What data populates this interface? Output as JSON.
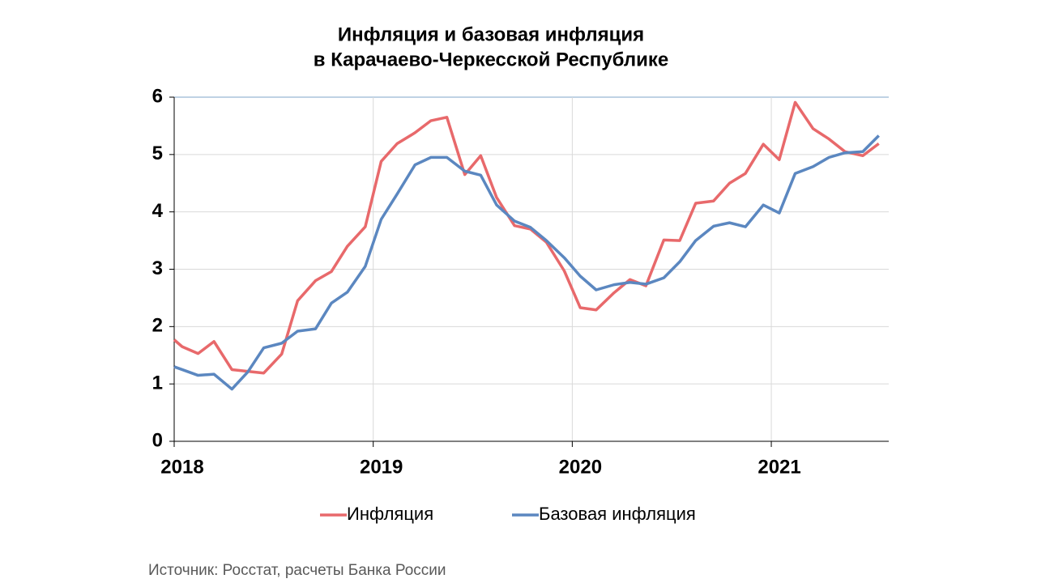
{
  "chart_data": {
    "type": "line",
    "title": [
      "Инфляция и базовая инфляция",
      "в Карачаево-Черкесской Республике"
    ],
    "source": "Источник: Росстат, расчеты Банка России",
    "x": [
      2018.0,
      2018.04,
      2018.12,
      2018.2,
      2018.29,
      2018.37,
      2018.45,
      2018.54,
      2018.62,
      2018.71,
      2018.79,
      2018.87,
      2018.96,
      2019.04,
      2019.12,
      2019.21,
      2019.29,
      2019.37,
      2019.46,
      2019.54,
      2019.62,
      2019.71,
      2019.79,
      2019.87,
      2019.96,
      2020.04,
      2020.12,
      2020.21,
      2020.29,
      2020.37,
      2020.46,
      2020.54,
      2020.62,
      2020.71,
      2020.79,
      2020.87,
      2020.96,
      2021.04,
      2021.12,
      2021.21,
      2021.29,
      2021.37,
      2021.46,
      2021.54
    ],
    "series": [
      {
        "name": "Инфляция",
        "color": "#e8696b",
        "values": [
          1.77,
          1.65,
          1.53,
          1.74,
          1.25,
          1.22,
          1.19,
          1.52,
          2.45,
          2.8,
          2.96,
          3.4,
          3.74,
          4.88,
          5.19,
          5.38,
          5.59,
          5.65,
          4.65,
          4.98,
          4.25,
          3.76,
          3.7,
          3.47,
          2.97,
          2.33,
          2.29,
          2.59,
          2.82,
          2.71,
          3.51,
          3.5,
          4.15,
          4.19,
          4.5,
          4.67,
          5.18,
          4.91,
          5.91,
          5.45,
          5.27,
          5.05,
          4.98,
          5.19
        ]
      },
      {
        "name": "Базовая инфляция",
        "color": "#5b87c0",
        "values": [
          1.3,
          1.25,
          1.15,
          1.17,
          0.91,
          1.21,
          1.63,
          1.71,
          1.92,
          1.96,
          2.41,
          2.6,
          3.05,
          3.87,
          4.31,
          4.82,
          4.95,
          4.95,
          4.71,
          4.64,
          4.12,
          3.84,
          3.73,
          3.5,
          3.2,
          2.88,
          2.64,
          2.73,
          2.77,
          2.74,
          2.85,
          3.13,
          3.5,
          3.75,
          3.81,
          3.74,
          4.12,
          3.98,
          4.67,
          4.79,
          4.95,
          5.03,
          5.05,
          5.33
        ]
      }
    ],
    "xlim": [
      2018,
      2021.59
    ],
    "xticks": [
      2018,
      2019,
      2020,
      2021
    ],
    "ylim": [
      0,
      6
    ],
    "yticks": [
      0,
      1,
      2,
      3,
      4,
      5,
      6
    ],
    "grid": true,
    "legend": "bottom"
  }
}
